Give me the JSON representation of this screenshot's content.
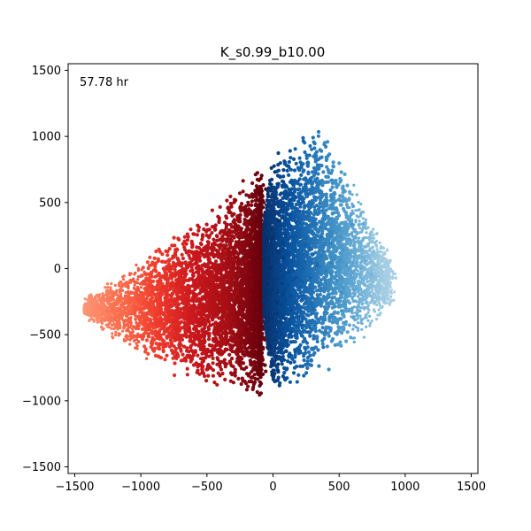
{
  "chart_data": {
    "type": "scatter",
    "title": "K_s0.99_b10.00",
    "xlabel": "",
    "ylabel": "",
    "xlim": [
      -1550,
      1550
    ],
    "ylim": [
      -1550,
      1550
    ],
    "xticks": [
      -1500,
      -1000,
      -500,
      0,
      500,
      1000,
      1500
    ],
    "yticks": [
      -1500,
      -1000,
      -500,
      0,
      500,
      1000,
      1500
    ],
    "xtick_labels": [
      "−1500",
      "−1000",
      "−500",
      "0",
      "500",
      "1000",
      "1500"
    ],
    "ytick_labels": [
      "−1500",
      "−1000",
      "−500",
      "0",
      "500",
      "1000",
      "1500"
    ],
    "grid": false,
    "annotation": "57.78 hr",
    "colormaps": {
      "red_group": "Reds",
      "blue_group": "Blues"
    },
    "series": [
      {
        "color_group": "red",
        "x_range": [
          -1480,
          -130
        ],
        "y_range": [
          -960,
          700
        ],
        "approx_cloud_outline": [
          [
            -140,
            700
          ],
          [
            -600,
            350
          ],
          [
            -1000,
            0
          ],
          [
            -1480,
            -300
          ],
          [
            -1200,
            -600
          ],
          [
            -700,
            -900
          ],
          [
            -300,
            -960
          ],
          [
            -140,
            -900
          ]
        ]
      },
      {
        "color_group": "blue",
        "x_range": [
          -130,
          900
        ],
        "y_range": [
          -960,
          1170
        ],
        "approx_cloud_outline": [
          [
            -130,
            700
          ],
          [
            150,
            950
          ],
          [
            400,
            1170
          ],
          [
            700,
            600
          ],
          [
            900,
            50
          ],
          [
            800,
            -550
          ],
          [
            500,
            -820
          ],
          [
            -100,
            -960
          ]
        ]
      }
    ]
  }
}
